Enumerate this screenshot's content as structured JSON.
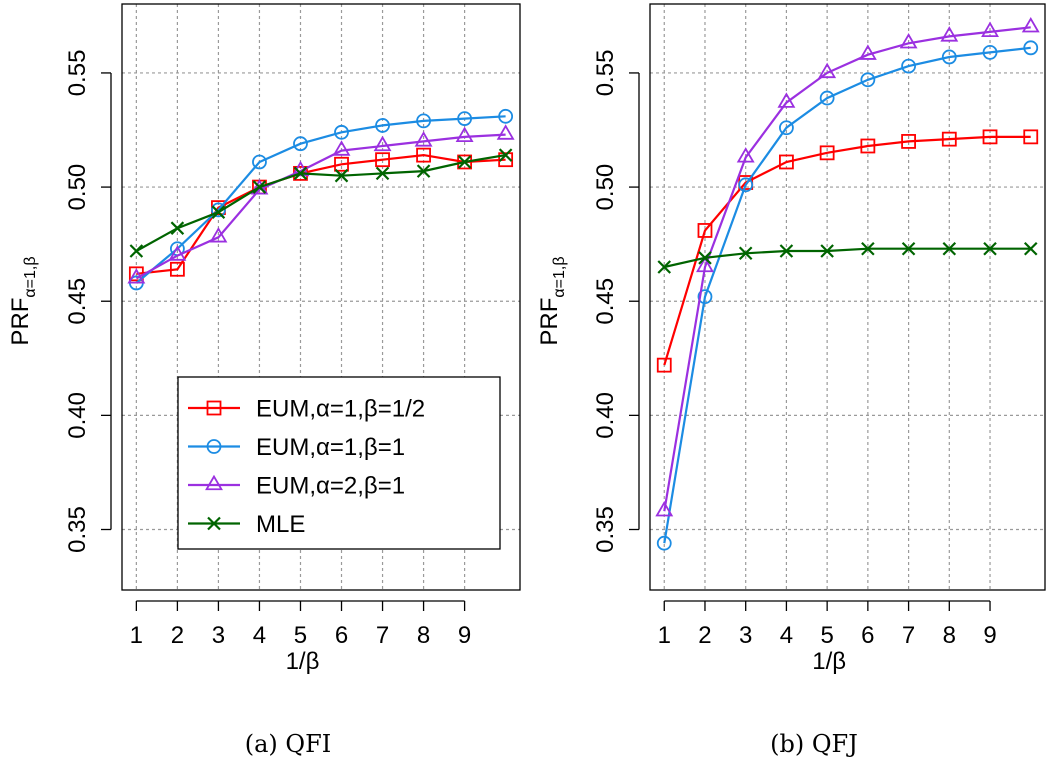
{
  "chart_data": [
    {
      "type": "line",
      "caption": "(a) QFI",
      "xlabel": "1/β",
      "ylabel_main": "PRF",
      "ylabel_sub": "α=1,β",
      "x": [
        1,
        2,
        3,
        4,
        5,
        6,
        7,
        8,
        9,
        10
      ],
      "x_ticks": [
        1,
        2,
        3,
        4,
        5,
        6,
        7,
        8,
        9
      ],
      "xlim": [
        0.65,
        10.35
      ],
      "y_ticks": [
        0.35,
        0.4,
        0.45,
        0.5,
        0.55
      ],
      "y_tick_labels": [
        "0.35",
        "0.40",
        "0.45",
        "0.50",
        "0.55"
      ],
      "ylim": [
        0.3235,
        0.5802
      ],
      "grid": true,
      "legend_position": "bottom-right",
      "series": [
        {
          "name": "EUM,α=1,β=1/2",
          "color": "#ff0000",
          "marker": "square",
          "values": [
            0.462,
            0.464,
            0.491,
            0.5,
            0.506,
            0.51,
            0.512,
            0.514,
            0.511,
            0.512
          ]
        },
        {
          "name": "EUM,α=1,β=1",
          "color": "#1c8ce3",
          "marker": "circle",
          "values": [
            0.458,
            0.473,
            0.49,
            0.511,
            0.519,
            0.524,
            0.527,
            0.529,
            0.53,
            0.531
          ]
        },
        {
          "name": "EUM,α=2,β=1",
          "color": "#9b30e0",
          "marker": "triangle",
          "values": [
            0.46,
            0.47,
            0.478,
            0.499,
            0.507,
            0.516,
            0.518,
            0.52,
            0.522,
            0.523
          ]
        },
        {
          "name": "MLE",
          "color": "#006400",
          "marker": "x",
          "values": [
            0.472,
            0.482,
            0.489,
            0.5,
            0.506,
            0.505,
            0.506,
            0.507,
            0.511,
            0.514
          ]
        }
      ]
    },
    {
      "type": "line",
      "caption": "(b) QFJ",
      "xlabel": "1/β",
      "ylabel_main": "PRF",
      "ylabel_sub": "α=1,β",
      "x": [
        1,
        2,
        3,
        4,
        5,
        6,
        7,
        8,
        9,
        10
      ],
      "x_ticks": [
        1,
        2,
        3,
        4,
        5,
        6,
        7,
        8,
        9
      ],
      "xlim": [
        0.65,
        10.35
      ],
      "y_ticks": [
        0.35,
        0.4,
        0.45,
        0.5,
        0.55
      ],
      "y_tick_labels": [
        "0.35",
        "0.40",
        "0.45",
        "0.50",
        "0.55"
      ],
      "ylim": [
        0.3235,
        0.5802
      ],
      "grid": true,
      "legend_position": "none",
      "series": [
        {
          "name": "EUM,α=1,β=1/2",
          "color": "#ff0000",
          "marker": "square",
          "values": [
            0.422,
            0.481,
            0.502,
            0.511,
            0.515,
            0.518,
            0.52,
            0.521,
            0.522,
            0.522
          ]
        },
        {
          "name": "EUM,α=1,β=1",
          "color": "#1c8ce3",
          "marker": "circle",
          "values": [
            0.344,
            0.452,
            0.501,
            0.526,
            0.539,
            0.547,
            0.553,
            0.557,
            0.559,
            0.561
          ]
        },
        {
          "name": "EUM,α=2,β=1",
          "color": "#9b30e0",
          "marker": "triangle",
          "values": [
            0.358,
            0.465,
            0.513,
            0.537,
            0.55,
            0.558,
            0.563,
            0.566,
            0.568,
            0.57
          ]
        },
        {
          "name": "MLE",
          "color": "#006400",
          "marker": "x",
          "values": [
            0.465,
            0.469,
            0.471,
            0.472,
            0.472,
            0.473,
            0.473,
            0.473,
            0.473,
            0.473
          ]
        }
      ]
    }
  ]
}
